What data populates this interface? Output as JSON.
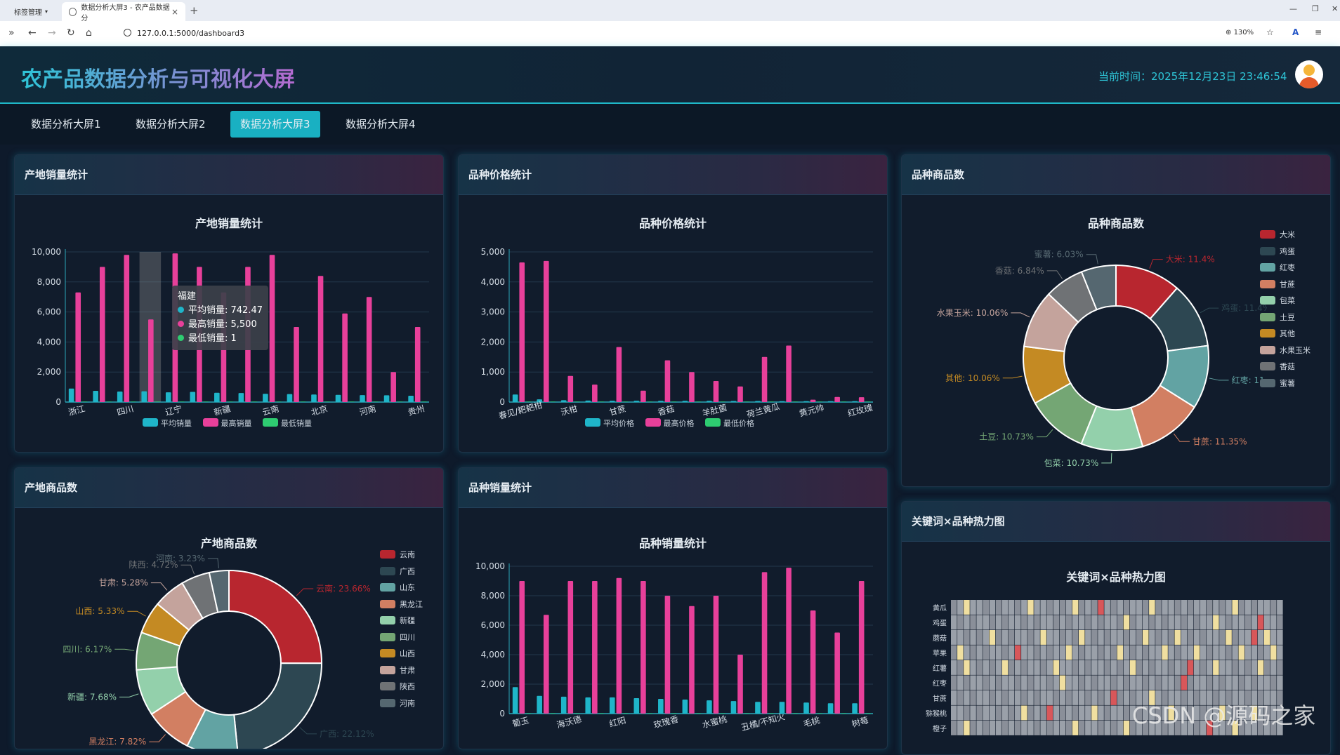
{
  "browser": {
    "tab1_label": "标签管理",
    "tab2_label": "数据分析大屏3 - 农产品数据分",
    "url": "127.0.0.1:5000/dashboard3",
    "zoom": "130%"
  },
  "header": {
    "title": "农产品数据分析与可视化大屏",
    "time": "当前时间：2025年12月23日 23:46:54"
  },
  "tabs": [
    {
      "label": "数据分析大屏1"
    },
    {
      "label": "数据分析大屏2"
    },
    {
      "label": "数据分析大屏3"
    },
    {
      "label": "数据分析大屏4"
    }
  ],
  "colors": {
    "avg": "#1fb5c9",
    "max": "#e8409a",
    "min": "#2ecc71"
  },
  "panels": {
    "p1": {
      "header": "产地销量统计"
    },
    "p2": {
      "header": "品种价格统计"
    },
    "p3": {
      "header": "品种商品数"
    },
    "p4": {
      "header": "产地商品数"
    },
    "p5": {
      "header": "品种销量统计"
    },
    "p6": {
      "header": "关键词×品种热力图"
    }
  },
  "tooltip": {
    "title": "福建",
    "lines": [
      "平均销量: 742.47",
      "最高销量: 5,500",
      "最低销量: 1"
    ]
  },
  "watermark": "CSDN @源码之家",
  "chart_data": [
    {
      "id": "origin_sales",
      "type": "bar",
      "title": "产地销量统计",
      "categories": [
        "浙江",
        "",
        "四川",
        "",
        "辽宁",
        "",
        "新疆",
        "",
        "云南",
        "",
        "北京",
        "",
        "河南",
        "",
        "贵州"
      ],
      "tick_labels": [
        "浙江",
        "四川",
        "辽宁",
        "新疆",
        "云南",
        "北京",
        "河南",
        "贵州"
      ],
      "series": [
        {
          "name": "平均销量",
          "values": [
            900,
            750,
            700,
            720,
            650,
            680,
            620,
            600,
            550,
            530,
            500,
            480,
            460,
            450,
            420
          ]
        },
        {
          "name": "最高销量",
          "values": [
            7300,
            9000,
            9800,
            5500,
            9900,
            9000,
            7300,
            9000,
            9800,
            5000,
            8400,
            5900,
            7000,
            2000,
            5000
          ]
        },
        {
          "name": "最低销量",
          "values": [
            1,
            1,
            1,
            1,
            1,
            1,
            1,
            1,
            1,
            1,
            1,
            1,
            1,
            1,
            1
          ]
        }
      ],
      "y_ticks": [
        "0",
        "2,000",
        "4,000",
        "6,000",
        "8,000",
        "10,000"
      ],
      "ylim": [
        0,
        10000
      ]
    },
    {
      "id": "variety_price",
      "type": "bar",
      "title": "品种价格统计",
      "categories": [
        "春见/耙耙柑",
        "",
        "沃柑",
        "",
        "甘蔗",
        "",
        "香菇",
        "",
        "羊肚菌",
        "",
        "荷兰黄瓜",
        "",
        "黄元帅",
        "",
        "红玫瑰"
      ],
      "tick_labels": [
        "春见/耙耙柑",
        "沃柑",
        "甘蔗",
        "香菇",
        "羊肚菌",
        "荷兰黄瓜",
        "黄元帅",
        "红玫瑰"
      ],
      "series": [
        {
          "name": "平均价格",
          "values": [
            250,
            90,
            60,
            50,
            45,
            45,
            40,
            40,
            40,
            35,
            35,
            30,
            30,
            30,
            30
          ]
        },
        {
          "name": "最高价格",
          "values": [
            4650,
            4700,
            870,
            580,
            1830,
            380,
            1390,
            1000,
            700,
            520,
            1500,
            1880,
            80,
            170,
            160
          ]
        },
        {
          "name": "最低价格",
          "values": [
            1,
            1,
            1,
            1,
            1,
            1,
            1,
            1,
            1,
            1,
            1,
            1,
            1,
            1,
            1
          ]
        }
      ],
      "y_ticks": [
        "0",
        "1,000",
        "2,000",
        "3,000",
        "4,000",
        "5,000"
      ],
      "ylim": [
        0,
        5000
      ]
    },
    {
      "id": "variety_count",
      "type": "pie",
      "title": "品种商品数",
      "slices": [
        {
          "name": "大米",
          "value": 11.4,
          "label": "大米: 11.4%",
          "color": "#b8262f"
        },
        {
          "name": "鸡蛋",
          "value": 11.4,
          "label": "鸡蛋: 11.4%",
          "color": "#2d4752"
        },
        {
          "name": "红枣",
          "value": 11.0,
          "label": "红枣: 11",
          "color": "#62a3a3"
        },
        {
          "name": "甘蔗",
          "value": 11.35,
          "label": "甘蔗: 11.35%",
          "color": "#d27f62"
        },
        {
          "name": "包菜",
          "value": 10.73,
          "label": "包菜: 10.73%",
          "color": "#93d0ab"
        },
        {
          "name": "土豆",
          "value": 10.73,
          "label": "土豆: 10.73%",
          "color": "#74a674"
        },
        {
          "name": "其他",
          "value": 10.06,
          "label": "其他: 10.06%",
          "color": "#c48a23"
        },
        {
          "name": "水果玉米",
          "value": 10.06,
          "label": "水果玉米: 10.06%",
          "color": "#c4a39c"
        },
        {
          "name": "香菇",
          "value": 6.84,
          "label": "香菇: 6.84%",
          "color": "#6f7275"
        },
        {
          "name": "蜜薯",
          "value": 6.03,
          "label": "蜜薯: 6.03%",
          "color": "#556770"
        }
      ]
    },
    {
      "id": "origin_count",
      "type": "pie",
      "title": "产地商品数",
      "slices": [
        {
          "name": "云南",
          "value": 23.66,
          "label": "云南: 23.66%",
          "color": "#b8262f"
        },
        {
          "name": "广西",
          "value": 22.12,
          "label": "广西: 22.12%",
          "color": "#2d4752"
        },
        {
          "name": "山东",
          "value": 8.5,
          "label": "",
          "color": "#62a3a3"
        },
        {
          "name": "黑龙江",
          "value": 7.82,
          "label": "黑龙江: 7.82%",
          "color": "#d27f62"
        },
        {
          "name": "新疆",
          "value": 7.68,
          "label": "新疆: 7.68%",
          "color": "#93d0ab"
        },
        {
          "name": "四川",
          "value": 6.17,
          "label": "四川: 6.17%",
          "color": "#74a674"
        },
        {
          "name": "山西",
          "value": 5.33,
          "label": "山西: 5.33%",
          "color": "#c48a23"
        },
        {
          "name": "甘肃",
          "value": 5.28,
          "label": "甘肃: 5.28%",
          "color": "#c4a39c"
        },
        {
          "name": "陕西",
          "value": 4.72,
          "label": "陕西: 4.72%",
          "color": "#6f7275"
        },
        {
          "name": "河南",
          "value": 3.23,
          "label": "河南: 3.23%",
          "color": "#556770"
        }
      ]
    },
    {
      "id": "variety_sales",
      "type": "bar",
      "title": "品种销量统计",
      "categories": [
        "葡玉",
        "",
        "海沃德",
        "",
        "红阳",
        "",
        "玫瑰香",
        "",
        "水蜜桃",
        "",
        "丑橘/不知火",
        "",
        "毛桃",
        "",
        "树莓"
      ],
      "tick_labels": [
        "葡玉",
        "海沃德",
        "红阳",
        "玫瑰香",
        "水蜜桃",
        "丑橘/不知火",
        "毛桃",
        "树莓"
      ],
      "series": [
        {
          "name": "平均销量",
          "values": [
            1800,
            1200,
            1150,
            1100,
            1100,
            1050,
            1000,
            950,
            900,
            850,
            800,
            800,
            750,
            700,
            700
          ]
        },
        {
          "name": "最高销量",
          "values": [
            9000,
            6700,
            9000,
            9000,
            9200,
            9000,
            8000,
            7300,
            8000,
            4000,
            9600,
            9900,
            7000,
            5500,
            9000
          ]
        },
        {
          "name": "最低销量",
          "values": [
            1,
            1,
            1,
            1,
            1,
            1,
            1,
            1,
            1,
            1,
            1,
            1,
            1,
            1,
            1
          ]
        }
      ],
      "y_ticks": [
        "0",
        "2,000",
        "4,000",
        "6,000",
        "8,000",
        "10,000"
      ],
      "ylim": [
        0,
        10000
      ]
    },
    {
      "id": "keyword_heatmap",
      "type": "heatmap",
      "title": "关键词×品种热力图",
      "y_categories": [
        "黄瓜",
        "鸡蛋",
        "蘑菇",
        "苹果",
        "红薯",
        "红枣",
        "甘蔗",
        "猕猴桃",
        "橙子"
      ],
      "highlights": [
        [
          0,
          2,
          2
        ],
        [
          0,
          12,
          2
        ],
        [
          0,
          19,
          2
        ],
        [
          0,
          23,
          3
        ],
        [
          0,
          31,
          2
        ],
        [
          0,
          44,
          2
        ],
        [
          1,
          27,
          2
        ],
        [
          1,
          41,
          2
        ],
        [
          1,
          48,
          3
        ],
        [
          2,
          6,
          2
        ],
        [
          2,
          14,
          2
        ],
        [
          2,
          20,
          2
        ],
        [
          2,
          30,
          2
        ],
        [
          2,
          35,
          2
        ],
        [
          2,
          43,
          2
        ],
        [
          2,
          47,
          3
        ],
        [
          2,
          49,
          2
        ],
        [
          3,
          1,
          2
        ],
        [
          3,
          10,
          3
        ],
        [
          3,
          18,
          2
        ],
        [
          3,
          26,
          2
        ],
        [
          3,
          33,
          2
        ],
        [
          3,
          38,
          2
        ],
        [
          3,
          45,
          2
        ],
        [
          3,
          50,
          2
        ],
        [
          4,
          2,
          2
        ],
        [
          4,
          8,
          2
        ],
        [
          4,
          16,
          2
        ],
        [
          4,
          28,
          2
        ],
        [
          4,
          37,
          3
        ],
        [
          4,
          41,
          2
        ],
        [
          4,
          48,
          2
        ],
        [
          5,
          17,
          2
        ],
        [
          5,
          36,
          3
        ],
        [
          6,
          25,
          3
        ],
        [
          6,
          31,
          2
        ],
        [
          7,
          11,
          2
        ],
        [
          7,
          15,
          3
        ],
        [
          7,
          22,
          2
        ],
        [
          7,
          34,
          2
        ],
        [
          7,
          42,
          2
        ],
        [
          7,
          47,
          2
        ],
        [
          8,
          2,
          2
        ],
        [
          8,
          19,
          2
        ],
        [
          8,
          27,
          2
        ],
        [
          8,
          40,
          3
        ],
        [
          8,
          44,
          2
        ]
      ]
    }
  ]
}
